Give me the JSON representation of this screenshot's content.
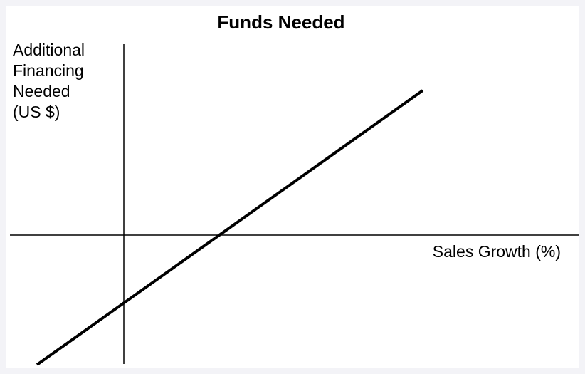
{
  "title": "Funds Needed",
  "y_axis_label": [
    "Additional",
    "Financing",
    "Needed",
    "(US $)"
  ],
  "x_axis_label": "Sales Growth (%)"
}
